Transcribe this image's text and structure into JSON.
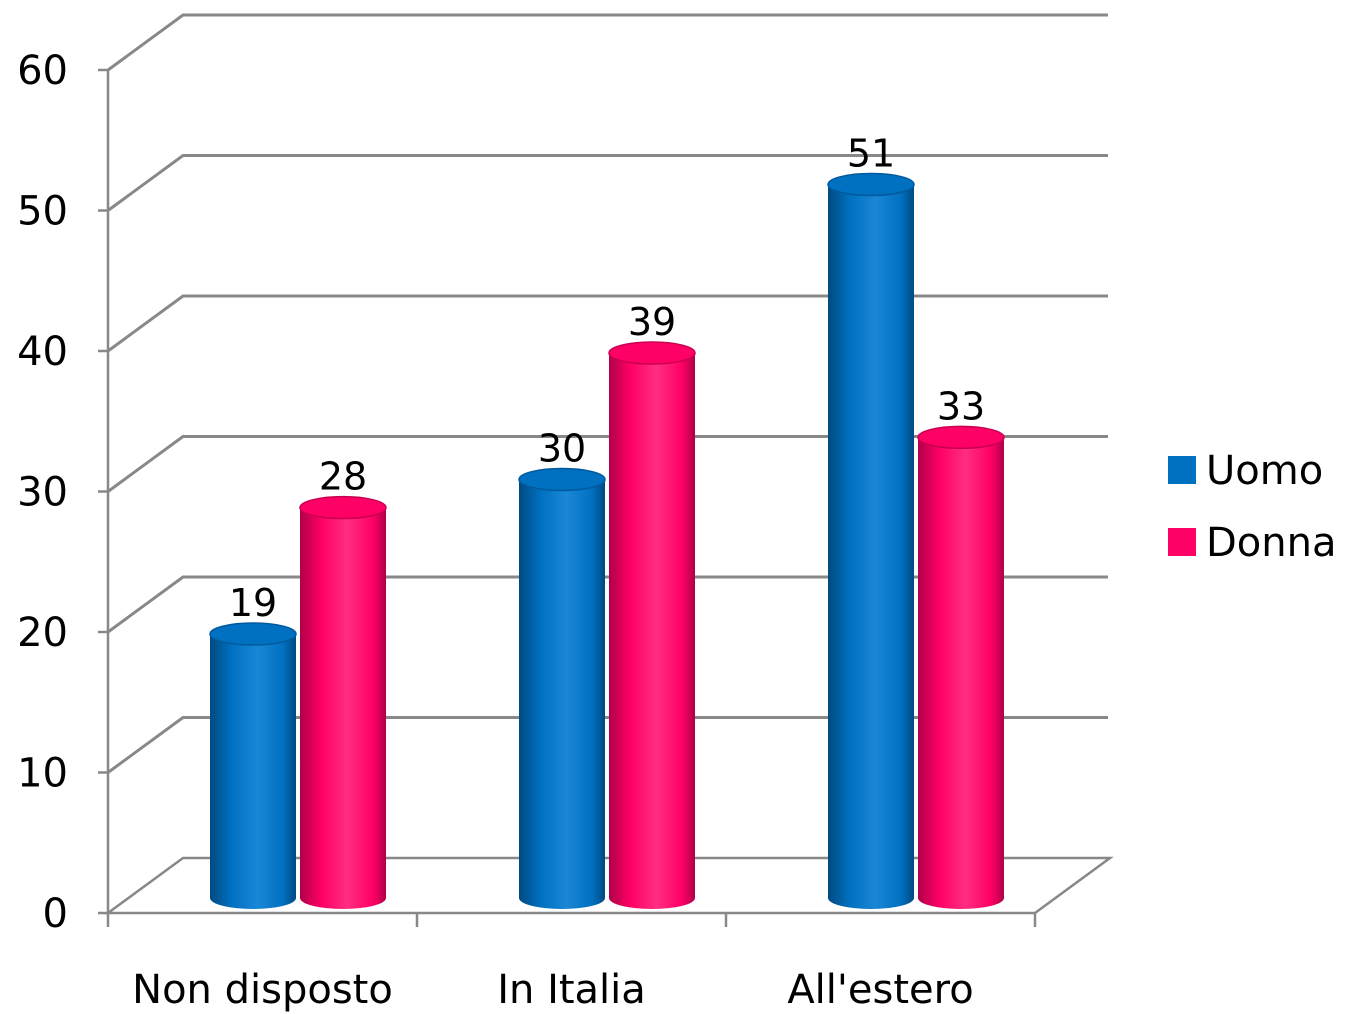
{
  "chart_data": {
    "type": "bar",
    "style": "3d-cylinder",
    "categories": [
      "Non disposto",
      "In Italia",
      "All'estero"
    ],
    "series": [
      {
        "name": "Uomo",
        "color": "#0070C0",
        "values": [
          19,
          30,
          51
        ]
      },
      {
        "name": "Donna",
        "color": "#FF0066",
        "values": [
          28,
          39,
          33
        ]
      }
    ],
    "ylim": [
      0,
      60
    ],
    "yticks": [
      "0",
      "10",
      "20",
      "30",
      "40",
      "50",
      "60"
    ],
    "grid": true,
    "legend_position": "right",
    "data_labels": true
  }
}
